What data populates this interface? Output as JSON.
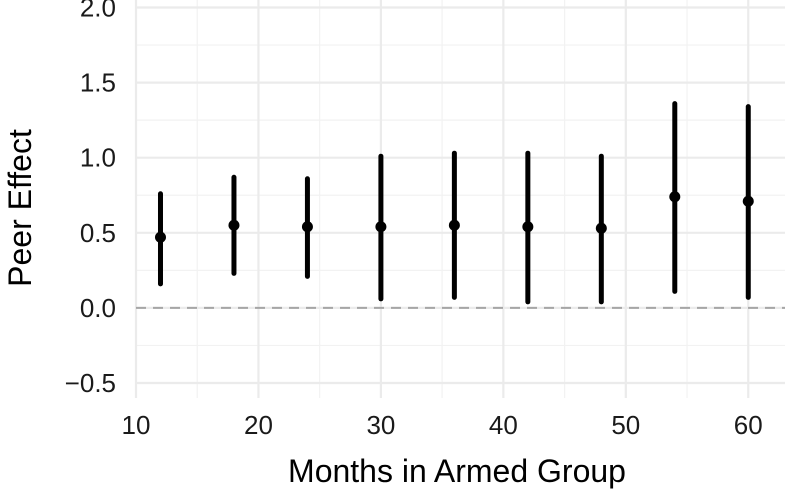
{
  "chart_data": {
    "type": "scatter",
    "title": "",
    "xlabel": "Months in Armed Group",
    "ylabel": "Peer Effect",
    "xlim": [
      10,
      63
    ],
    "ylim": [
      -0.6,
      2.05
    ],
    "x_ticks": [
      10,
      20,
      30,
      40,
      50,
      60
    ],
    "x_tick_labels": [
      "10",
      "20",
      "30",
      "40",
      "50",
      "60"
    ],
    "y_ticks": [
      -0.5,
      0.0,
      0.5,
      1.0,
      1.5,
      2.0
    ],
    "y_tick_labels": [
      "−0.5",
      "0.0",
      "0.5",
      "1.0",
      "1.5",
      "2.0"
    ],
    "grid": true,
    "reference_line": {
      "y": 0,
      "style": "dashed",
      "color": "#a6a6a6"
    },
    "series": [
      {
        "x": [
          12,
          18,
          24,
          30,
          36,
          42,
          48,
          54,
          60
        ],
        "y": [
          0.47,
          0.55,
          0.54,
          0.54,
          0.55,
          0.54,
          0.53,
          0.74,
          0.71
        ],
        "lower": [
          0.16,
          0.23,
          0.21,
          0.06,
          0.07,
          0.04,
          0.04,
          0.11,
          0.07
        ],
        "upper": [
          0.76,
          0.87,
          0.86,
          1.01,
          1.03,
          1.03,
          1.01,
          1.36,
          1.34
        ],
        "color": "#000000"
      }
    ]
  }
}
